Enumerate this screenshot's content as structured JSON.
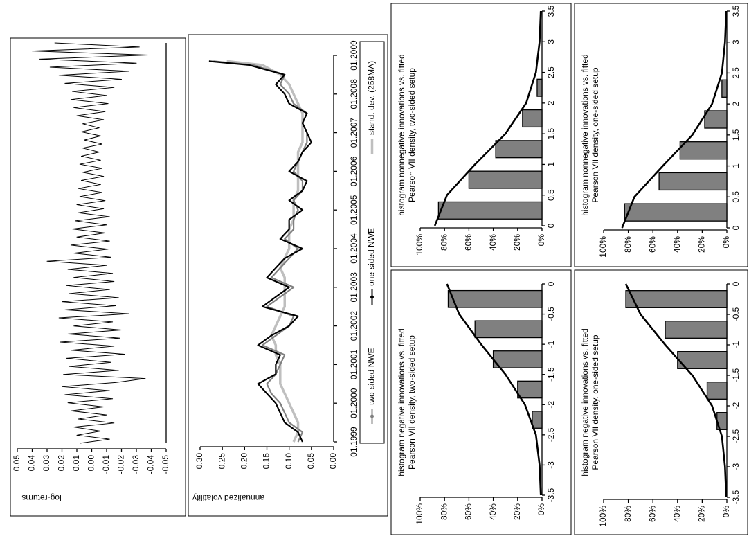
{
  "chart_data": [
    {
      "type": "line",
      "y_label": "log-returns",
      "color": "#000000",
      "ylim": [
        -0.05,
        0.05
      ],
      "yticks": [
        0.05,
        0.04,
        0.03,
        0.02,
        0.01,
        {
          "value": 0,
          "label": "0.00"
        },
        -0.01,
        -0.02,
        -0.03,
        -0.04,
        -0.05
      ],
      "values": [
        0.008,
        -0.012,
        0.01,
        -0.006,
        0.012,
        -0.015,
        0.009,
        -0.01,
        0.014,
        -0.008,
        0.016,
        -0.014,
        0.018,
        -0.012,
        0.02,
        -0.016,
        -0.036,
        0.019,
        -0.018,
        0.015,
        -0.013,
        0.017,
        -0.022,
        0.014,
        -0.015,
        0.021,
        -0.019,
        0.016,
        -0.02,
        0.012,
        -0.014,
        0.022,
        -0.025,
        0.018,
        -0.016,
        0.02,
        -0.018,
        0.015,
        -0.012,
        0.017,
        -0.015,
        0.012,
        -0.014,
        0.016,
        -0.01,
        0.03,
        -0.013,
        0.012,
        -0.011,
        0.014,
        -0.012,
        0.01,
        -0.009,
        0.013,
        -0.01,
        0.011,
        -0.012,
        0.009,
        -0.008,
        0.01,
        -0.009,
        0.008,
        -0.007,
        0.009,
        -0.006,
        0.007,
        -0.008,
        0.006,
        -0.007,
        0.008,
        -0.006,
        0.007,
        -0.005,
        0.006,
        -0.007,
        0.005,
        -0.006,
        0.007,
        -0.005,
        0.006,
        -0.008,
        0.01,
        -0.009,
        0.012,
        -0.011,
        0.014,
        -0.01,
        0.013,
        -0.015,
        0.018,
        -0.02,
        0.022,
        -0.025,
        0.028,
        -0.03,
        0.035,
        -0.038,
        0.04,
        -0.032,
        0.025
      ]
    },
    {
      "type": "line",
      "y_label": "annualized volatility",
      "xlim": [
        1999,
        2009
      ],
      "xticks": [
        {
          "value": 1999,
          "label": "01.1999"
        },
        {
          "value": 2000,
          "label": "01.2000"
        },
        {
          "value": 2001,
          "label": "01.2001"
        },
        {
          "value": 2002,
          "label": "01.2002"
        },
        {
          "value": 2003,
          "label": "01.2003"
        },
        {
          "value": 2004,
          "label": "01.2004"
        },
        {
          "value": 2005,
          "label": "01.2005"
        },
        {
          "value": 2006,
          "label": "01.2006"
        },
        {
          "value": 2007,
          "label": "01.2007"
        },
        {
          "value": 2008,
          "label": "01.2008"
        },
        {
          "value": 2009,
          "label": "01.2009"
        }
      ],
      "ylim": [
        0,
        0.3
      ],
      "yticks": [
        {
          "value": 0.3,
          "label": "0.30"
        },
        0.25,
        {
          "value": 0.2,
          "label": "0.20"
        },
        0.15,
        {
          "value": 0.1,
          "label": "0.10"
        },
        0.05,
        {
          "value": 0,
          "label": "0.00"
        }
      ],
      "legend": "bottom",
      "x": [
        1999,
        1999.25,
        1999.5,
        1999.75,
        2000,
        2000.25,
        2000.5,
        2000.75,
        2001,
        2001.25,
        2001.5,
        2001.75,
        2002,
        2002.25,
        2002.5,
        2002.75,
        2003,
        2003.25,
        2003.5,
        2003.75,
        2004,
        2004.25,
        2004.5,
        2004.75,
        2005,
        2005.25,
        2005.5,
        2005.75,
        2006,
        2006.25,
        2006.5,
        2006.75,
        2007,
        2007.25,
        2007.5,
        2007.75,
        2008,
        2008.25,
        2008.5,
        2008.75,
        2008.85
      ],
      "series": [
        {
          "name": "two-sided NWE",
          "color": "#808080",
          "values": [
            0.08,
            0.07,
            0.1,
            0.11,
            0.12,
            0.14,
            0.15,
            0.13,
            0.12,
            0.11,
            0.16,
            0.13,
            0.1,
            0.09,
            0.15,
            0.12,
            0.09,
            0.14,
            0.12,
            0.1,
            0.08,
            0.11,
            0.09,
            0.09,
            0.08,
            0.09,
            0.07,
            0.07,
            0.09,
            0.08,
            0.07,
            0.06,
            0.06,
            0.07,
            0.06,
            0.09,
            0.1,
            0.12,
            0.11,
            0.18,
            0.27
          ]
        },
        {
          "name": "one-sided NWE",
          "color": "#000000",
          "values": [
            0.07,
            0.08,
            0.11,
            0.12,
            0.13,
            0.15,
            0.17,
            0.13,
            0.13,
            0.12,
            0.17,
            0.14,
            0.1,
            0.08,
            0.16,
            0.13,
            0.1,
            0.15,
            0.13,
            0.11,
            0.07,
            0.12,
            0.1,
            0.1,
            0.07,
            0.1,
            0.07,
            0.06,
            0.1,
            0.08,
            0.07,
            0.05,
            0.06,
            0.07,
            0.06,
            0.1,
            0.11,
            0.13,
            0.11,
            0.19,
            0.28
          ]
        },
        {
          "name": "stand. dev. (258MA)",
          "color": "#bfbfbf",
          "values": [
            0.09,
            0.08,
            0.08,
            0.09,
            0.1,
            0.11,
            0.12,
            0.12,
            0.12,
            0.13,
            0.13,
            0.14,
            0.13,
            0.12,
            0.11,
            0.11,
            0.11,
            0.11,
            0.12,
            0.11,
            0.1,
            0.1,
            0.1,
            0.09,
            0.09,
            0.09,
            0.08,
            0.08,
            0.08,
            0.08,
            0.08,
            0.07,
            0.07,
            0.07,
            0.07,
            0.08,
            0.09,
            0.1,
            0.12,
            0.16,
            0.24
          ]
        }
      ]
    },
    {
      "type": "bar",
      "title": "histogram negative innovations vs. fitted",
      "subtitle": "Pearson VII density, two-sided setup",
      "xlim": [
        -3.5,
        0
      ],
      "xticks": [
        -3.5,
        -3,
        -2.5,
        -2,
        -1.5,
        -1,
        -0.5,
        0
      ],
      "ylim": [
        0,
        100
      ],
      "yticks": [
        {
          "value": 100,
          "label": "100%"
        },
        {
          "value": 80,
          "label": "80%"
        },
        {
          "value": 60,
          "label": "60%"
        },
        {
          "value": 40,
          "label": "40%"
        },
        {
          "value": 20,
          "label": "20%"
        },
        {
          "value": 0,
          "label": "0%"
        }
      ],
      "color": "#808080",
      "x": [
        -2.25,
        -1.75,
        -1.25,
        -0.75,
        -0.25
      ],
      "values": [
        8,
        20,
        40,
        55,
        77
      ],
      "curve": {
        "color": "#000000",
        "x": [
          -3.5,
          -3,
          -2.5,
          -2,
          -1.5,
          -1,
          -0.5,
          0
        ],
        "values": [
          1,
          2,
          5,
          14,
          30,
          50,
          68,
          78
        ]
      }
    },
    {
      "type": "bar",
      "title": "histogram nonnegative innovations vs. fitted",
      "subtitle": "Pearson VII density, two-sided setup",
      "xlim": [
        0,
        3.5
      ],
      "xticks": [
        0,
        0.5,
        1,
        1.5,
        2,
        2.5,
        3,
        3.5
      ],
      "ylim": [
        0,
        100
      ],
      "yticks": [
        {
          "value": 100,
          "label": "100%"
        },
        {
          "value": 80,
          "label": "80%"
        },
        {
          "value": 60,
          "label": "60%"
        },
        {
          "value": 40,
          "label": "40%"
        },
        {
          "value": 20,
          "label": "20%"
        },
        {
          "value": 0,
          "label": "0%"
        }
      ],
      "color": "#808080",
      "x": [
        0.25,
        0.75,
        1.25,
        1.75,
        2.25
      ],
      "values": [
        85,
        60,
        38,
        16,
        4
      ],
      "curve": {
        "color": "#000000",
        "x": [
          0,
          0.5,
          1,
          1.5,
          2,
          2.5,
          3,
          3.5
        ],
        "values": [
          88,
          78,
          55,
          30,
          13,
          5,
          2,
          1
        ]
      }
    },
    {
      "type": "bar",
      "title": "histogram negative innovations vs. fitted",
      "subtitle": "Pearson VII density, one-sided setup",
      "xlim": [
        -3.5,
        0
      ],
      "xticks": [
        -3.5,
        -3,
        -2.5,
        -2,
        -1.5,
        -1,
        -0.5,
        0
      ],
      "ylim": [
        0,
        100
      ],
      "yticks": [
        {
          "value": 100,
          "label": "100%"
        },
        {
          "value": 80,
          "label": "80%"
        },
        {
          "value": 60,
          "label": "60%"
        },
        {
          "value": 40,
          "label": "40%"
        },
        {
          "value": 20,
          "label": "20%"
        },
        {
          "value": 0,
          "label": "0%"
        }
      ],
      "color": "#808080",
      "x": [
        -2.25,
        -1.75,
        -1.25,
        -0.75,
        -0.25
      ],
      "values": [
        8,
        16,
        40,
        50,
        82
      ],
      "curve": {
        "color": "#000000",
        "x": [
          -3.5,
          -3,
          -2.5,
          -2,
          -1.5,
          -1,
          -0.5,
          0
        ],
        "values": [
          0.5,
          1.5,
          4,
          12,
          28,
          50,
          70,
          82
        ]
      }
    },
    {
      "type": "bar",
      "title": "histogram nonnegative innovations vs. fitted",
      "subtitle": "Pearson VII density, one-sided setup",
      "xlim": [
        0,
        3.5
      ],
      "xticks": [
        0,
        0.5,
        1,
        1.5,
        2,
        2.5,
        3,
        3.5
      ],
      "ylim": [
        0,
        100
      ],
      "yticks": [
        {
          "value": 100,
          "label": "100%"
        },
        {
          "value": 80,
          "label": "80%"
        },
        {
          "value": 60,
          "label": "60%"
        },
        {
          "value": 40,
          "label": "40%"
        },
        {
          "value": 20,
          "label": "20%"
        },
        {
          "value": 0,
          "label": "0%"
        }
      ],
      "color": "#808080",
      "x": [
        0.25,
        0.75,
        1.25,
        1.75,
        2.25
      ],
      "values": [
        83,
        55,
        38,
        18,
        4
      ],
      "curve": {
        "color": "#000000",
        "x": [
          0,
          0.5,
          1,
          1.5,
          2,
          2.5,
          3,
          3.5
        ],
        "values": [
          85,
          75,
          52,
          28,
          12,
          4,
          1.5,
          0.5
        ]
      }
    }
  ]
}
